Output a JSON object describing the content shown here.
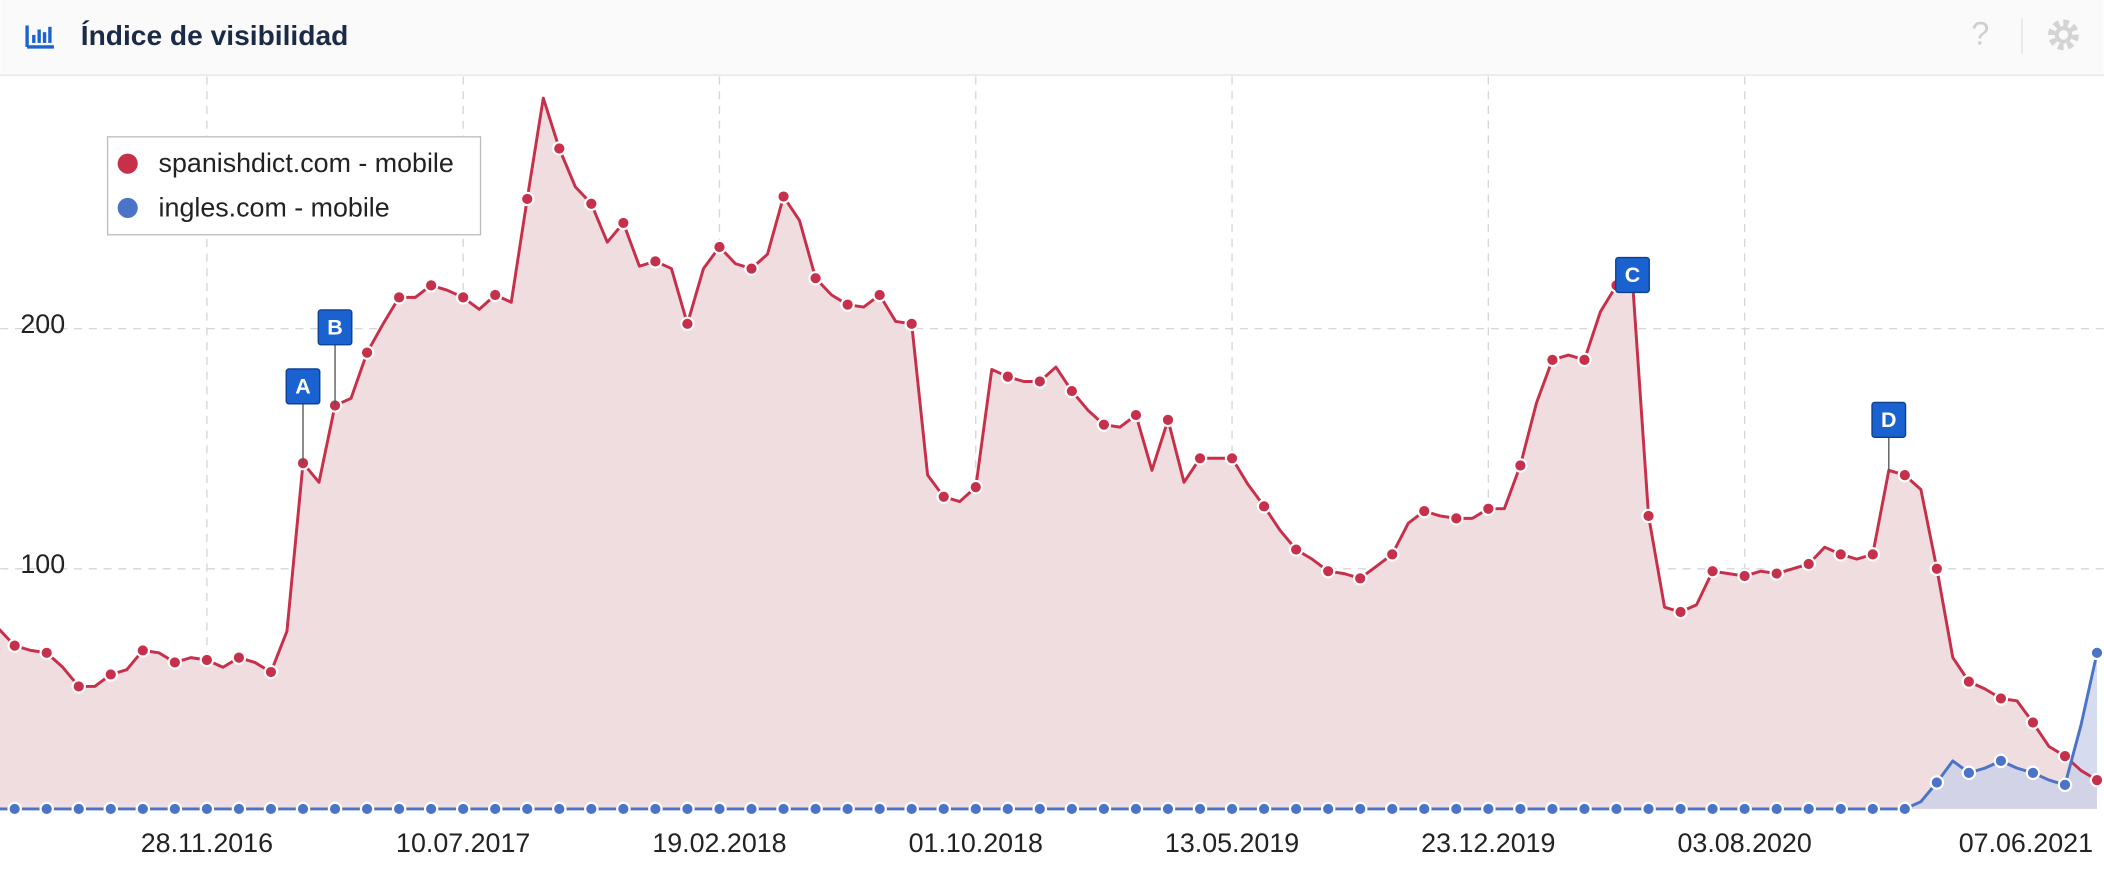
{
  "header": {
    "title": "Índice de visibilidad",
    "help": "?"
  },
  "chart_data": {
    "type": "line",
    "categories": [
      null,
      null,
      null,
      null,
      null,
      null,
      null,
      null,
      null,
      null,
      null,
      null,
      null,
      "28.11.2016",
      null,
      null,
      null,
      null,
      null,
      null,
      null,
      null,
      null,
      null,
      null,
      null,
      null,
      null,
      null,
      "10.07.2017",
      null,
      null,
      null,
      null,
      null,
      null,
      null,
      null,
      null,
      null,
      null,
      null,
      null,
      null,
      null,
      "19.02.2018",
      null,
      null,
      null,
      null,
      null,
      null,
      null,
      null,
      null,
      null,
      null,
      null,
      null,
      null,
      null,
      "01.10.2018",
      null,
      null,
      null,
      null,
      null,
      null,
      null,
      null,
      null,
      null,
      null,
      null,
      null,
      null,
      null,
      "13.05.2019",
      null,
      null,
      null,
      null,
      null,
      null,
      null,
      null,
      null,
      null,
      null,
      null,
      null,
      null,
      null,
      "23.12.2019",
      null,
      null,
      null,
      null,
      null,
      null,
      null,
      null,
      null,
      null,
      null,
      null,
      null,
      null,
      null,
      "03.08.2020",
      null,
      null,
      null,
      null,
      null,
      null,
      null,
      null,
      null,
      null,
      null,
      null,
      null,
      null,
      null,
      null,
      null,
      null,
      null,
      null,
      null,
      "07.06.2021"
    ],
    "series": [
      {
        "name": "spanishdict.com - mobile",
        "color": "#c6304b",
        "fill": "#f0dde0",
        "values": [
          75,
          68,
          66,
          65,
          59,
          51,
          51,
          56,
          58,
          66,
          65,
          61,
          63,
          62,
          59,
          63,
          61,
          57,
          74,
          144,
          136,
          168,
          171,
          190,
          202,
          213,
          213,
          218,
          216,
          213,
          208,
          214,
          211,
          254,
          296,
          275,
          259,
          252,
          236,
          244,
          226,
          228,
          225,
          202,
          225,
          234,
          227,
          225,
          231,
          255,
          245,
          221,
          214,
          210,
          209,
          214,
          203,
          202,
          139,
          130,
          128,
          134,
          183,
          180,
          178,
          178,
          184,
          174,
          166,
          160,
          159,
          164,
          141,
          162,
          136,
          146,
          146,
          146,
          135,
          126,
          116,
          108,
          104,
          99,
          98,
          96,
          101,
          106,
          119,
          124,
          122,
          121,
          121,
          125,
          125,
          143,
          169,
          187,
          189,
          187,
          207,
          218,
          220,
          122,
          84,
          82,
          85,
          99,
          98,
          97,
          99,
          98,
          100,
          102,
          109,
          106,
          104,
          106,
          141,
          139,
          133,
          100,
          63,
          53,
          50,
          46,
          45,
          36,
          26,
          22,
          16,
          12
        ]
      },
      {
        "name": "ingles.com - mobile",
        "color": "#4b73c8",
        "fill": "#c9cfe9",
        "values": [
          0,
          0,
          0,
          0,
          0,
          0,
          0,
          0,
          0,
          0,
          0,
          0,
          0,
          0,
          0,
          0,
          0,
          0,
          0,
          0,
          0,
          0,
          0,
          0,
          0,
          0,
          0,
          0,
          0,
          0,
          0,
          0,
          0,
          0,
          0,
          0,
          0,
          0,
          0,
          0,
          0,
          0,
          0,
          0,
          0,
          0,
          0,
          0,
          0,
          0,
          0,
          0,
          0,
          0,
          0,
          0,
          0,
          0,
          0,
          0,
          0,
          0,
          0,
          0,
          0,
          0,
          0,
          0,
          0,
          0,
          0,
          0,
          0,
          0,
          0,
          0,
          0,
          0,
          0,
          0,
          0,
          0,
          0,
          0,
          0,
          0,
          0,
          0,
          0,
          0,
          0,
          0,
          0,
          0,
          0,
          0,
          0,
          0,
          0,
          0,
          0,
          0,
          0,
          0,
          0,
          0,
          0,
          0,
          0,
          0,
          0,
          0,
          0,
          0,
          0,
          0,
          0,
          0,
          0,
          0,
          3,
          11,
          20,
          15,
          17,
          20,
          17,
          15,
          12,
          10,
          35,
          65
        ]
      }
    ],
    "annotations": [
      "A",
      "B",
      "C",
      "D"
    ],
    "ylim": [
      0,
      305
    ],
    "yticks": [
      100,
      200
    ],
    "grid": true,
    "legend": "top-left"
  }
}
